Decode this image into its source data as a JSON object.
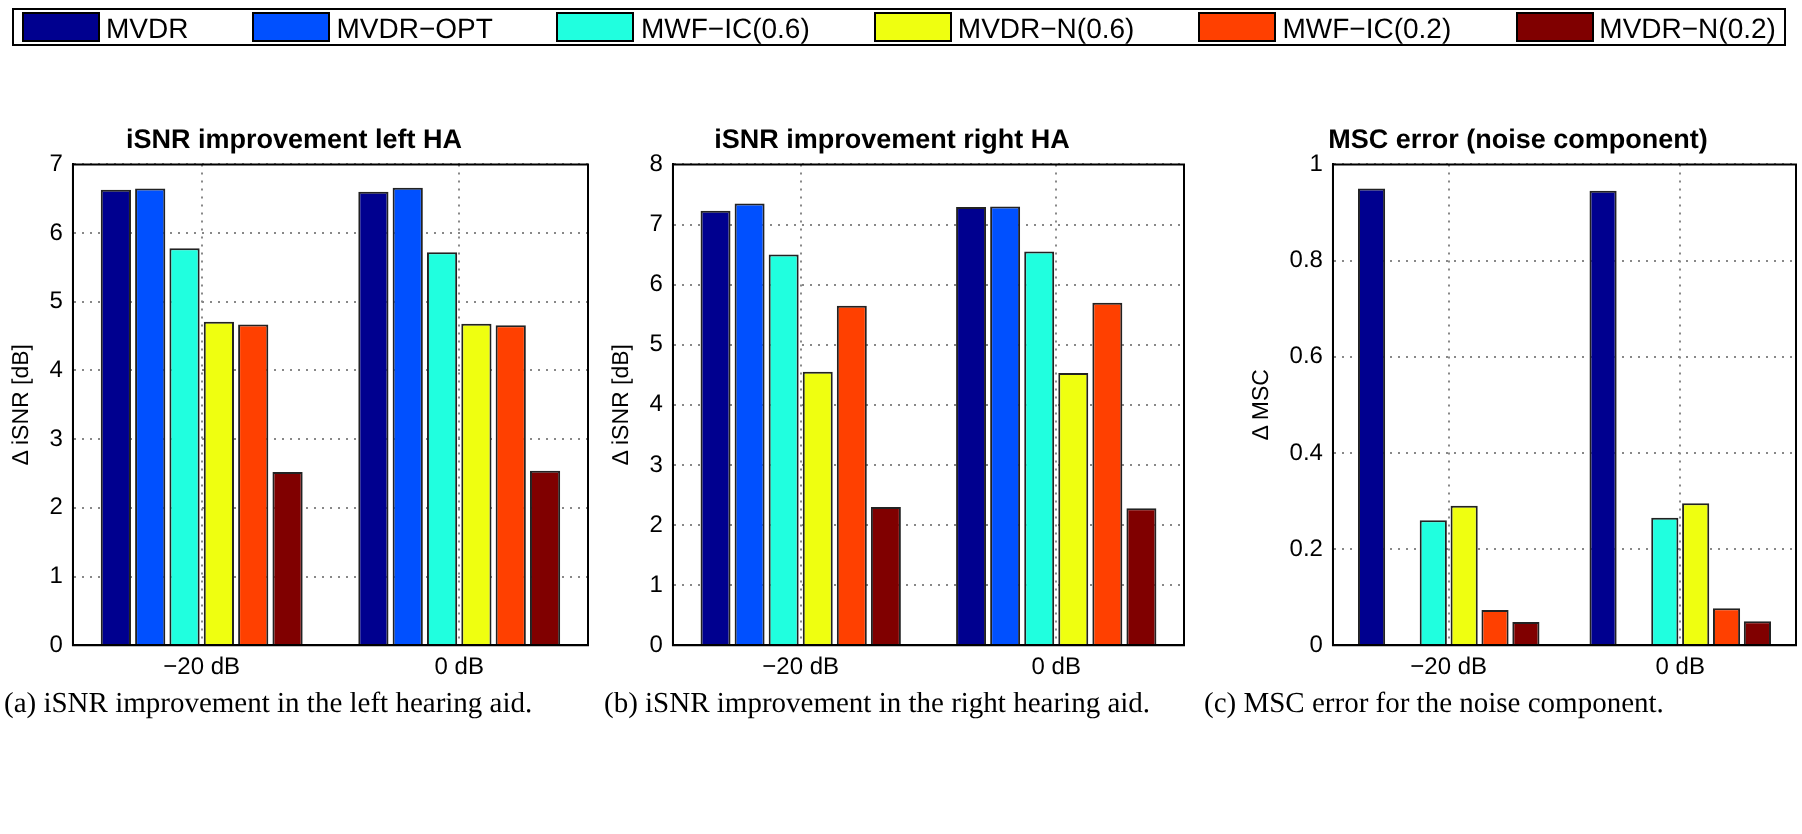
{
  "chart_data": [
    {
      "type": "bar",
      "title": "iSNR improvement left HA",
      "ylabel": "Δ iSNR [dB]",
      "categories": [
        "−20 dB",
        "0 dB"
      ],
      "ylim": [
        0,
        7
      ],
      "yticks": [
        0,
        1,
        2,
        3,
        4,
        5,
        6,
        7
      ],
      "grid": true,
      "legend": "top",
      "annotations": [
        "(a) iSNR improvement in the left hearing aid."
      ],
      "series": [
        {
          "name": "MVDR",
          "color": "#00008f",
          "values": [
            6.63,
            6.6
          ]
        },
        {
          "name": "MVDR−OPT",
          "color": "#0050ff",
          "values": [
            6.65,
            6.66
          ]
        },
        {
          "name": "MWF−IC(0.6)",
          "color": "#20ffdf",
          "values": [
            5.78,
            5.72
          ]
        },
        {
          "name": "MVDR−N(0.6)",
          "color": "#efff10",
          "values": [
            4.71,
            4.68
          ]
        },
        {
          "name": "MWF−IC(0.2)",
          "color": "#ff4000",
          "values": [
            4.67,
            4.66
          ]
        },
        {
          "name": "MVDR−N(0.2)",
          "color": "#800000",
          "values": [
            2.52,
            2.54
          ]
        }
      ]
    },
    {
      "type": "bar",
      "title": "iSNR improvement right HA",
      "ylabel": "Δ iSNR [dB]",
      "categories": [
        "−20 dB",
        "0 dB"
      ],
      "ylim": [
        0,
        8
      ],
      "yticks": [
        0,
        1,
        2,
        3,
        4,
        5,
        6,
        7,
        8
      ],
      "grid": true,
      "annotations": [
        "(b) iSNR improvement in the right hearing aid."
      ],
      "series": [
        {
          "color": "#00008f",
          "values": [
            7.23,
            7.29
          ]
        },
        {
          "color": "#0050ff",
          "values": [
            7.35,
            7.3
          ]
        },
        {
          "color": "#20ffdf",
          "values": [
            6.5,
            6.55
          ]
        },
        {
          "color": "#efff10",
          "values": [
            4.55,
            4.53
          ]
        },
        {
          "color": "#ff4000",
          "values": [
            5.65,
            5.7
          ]
        },
        {
          "color": "#800000",
          "values": [
            2.3,
            2.28
          ]
        }
      ]
    },
    {
      "type": "bar",
      "title": "MSC error (noise component)",
      "ylabel": "Δ MSC",
      "categories": [
        "−20 dB",
        "0 dB"
      ],
      "ylim": [
        0,
        1
      ],
      "yticks": [
        0,
        0.2,
        0.4,
        0.6,
        0.8,
        1
      ],
      "grid": true,
      "annotations": [
        "(c) MSC error for the noise component."
      ],
      "series": [
        {
          "color": "#00008f",
          "values": [
            0.95,
            0.945
          ]
        },
        {
          "color": "#0050ff",
          "values": [
            0,
            0
          ]
        },
        {
          "color": "#20ffdf",
          "values": [
            0.26,
            0.265
          ]
        },
        {
          "color": "#efff10",
          "values": [
            0.29,
            0.295
          ]
        },
        {
          "color": "#ff4000",
          "values": [
            0.073,
            0.077
          ]
        },
        {
          "color": "#800000",
          "values": [
            0.048,
            0.05
          ]
        }
      ]
    }
  ]
}
